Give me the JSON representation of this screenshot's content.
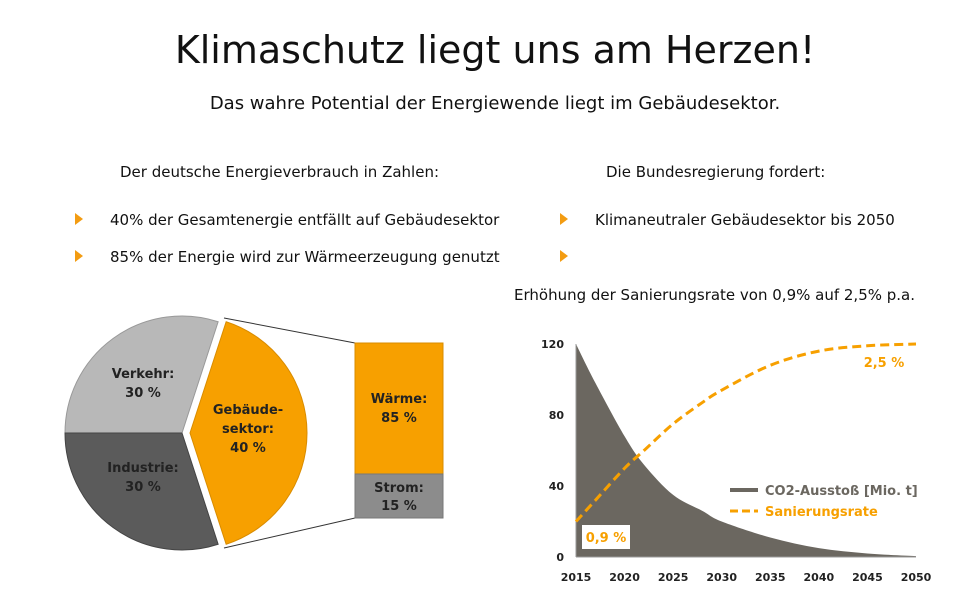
{
  "title": "Klimaschutz liegt uns am Herzen!",
  "subtitle": "Das wahre Potential der Energiewende liegt im Gebäudesektor.",
  "left": {
    "heading": "Der deutsche Energieverbrauch in Zahlen:",
    "bullets": [
      "40% der Gesamtenergie entfällt auf Gebäudesektor",
      "85% der Energie wird zur Wärmeerzeugung genutzt"
    ]
  },
  "right": {
    "heading": "Die Bundesregierung fordert:",
    "bullets": [
      "Klimaneutraler Gebäudesektor bis 2050",
      ""
    ],
    "note": "Erhöhung der Sanierungsrate von 0,9% auf 2,5% p.a."
  },
  "colors": {
    "accent": "#f7a000",
    "light_gray": "#b5b5b5",
    "dark_gray": "#5a5a5a",
    "co2": "#6b6760"
  },
  "chart_data": [
    {
      "type": "pie",
      "slices": [
        {
          "label": "Verkehr:",
          "value_label": "30 %",
          "value": 30
        },
        {
          "label": "Gebäude-sektor:",
          "label_lines": [
            "Gebäude-",
            "sektor:"
          ],
          "value_label": "40 %",
          "value": 40
        },
        {
          "label": "Industrie:",
          "value_label": "30 %",
          "value": 30
        }
      ],
      "breakdown": [
        {
          "label": "Wärme:",
          "value_label": "85 %",
          "value": 85
        },
        {
          "label": "Strom:",
          "value_label": "15 %",
          "value": 15
        }
      ]
    },
    {
      "type": "area",
      "x": [
        2015,
        2017,
        2020,
        2022,
        2025,
        2028,
        2030,
        2035,
        2040,
        2045,
        2050
      ],
      "series": [
        {
          "name": "CO2-Ausstoß [Mio. t]",
          "values": [
            120,
            98,
            68,
            52,
            35,
            26,
            20,
            11,
            5,
            2,
            0.5
          ]
        },
        {
          "name": "Sanierungsrate",
          "values": [
            20,
            32,
            50,
            60,
            75,
            87,
            94,
            108,
            116,
            119,
            120
          ]
        }
      ],
      "annotations": [
        "0,9 %",
        "2,5 %"
      ],
      "xticks": [
        2015,
        2020,
        2025,
        2030,
        2035,
        2040,
        2045,
        2050
      ],
      "yticks": [
        0,
        40,
        80,
        120
      ],
      "ylim": [
        0,
        120
      ],
      "xlim": [
        2015,
        2050
      ],
      "legend": "right"
    }
  ]
}
